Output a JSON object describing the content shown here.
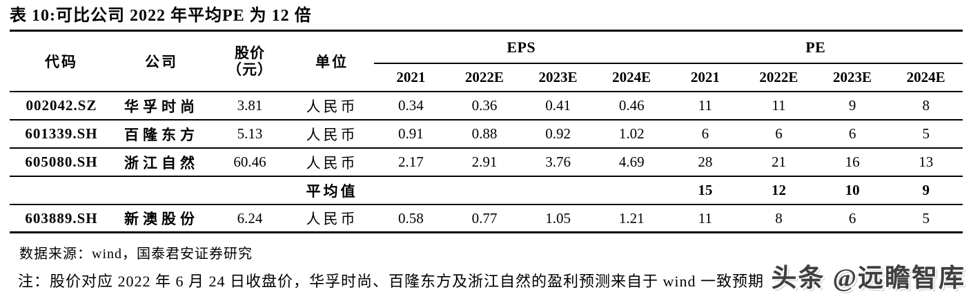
{
  "title": "表 10:可比公司 2022 年平均PE 为 12 倍",
  "colors": {
    "text": "#000000",
    "watermark": "#3f3f3f"
  },
  "table": {
    "headers": {
      "code": "代码",
      "company": "公司",
      "price_line1": "股价",
      "price_line2": "（元）",
      "unit": "单位",
      "eps_group": "EPS",
      "pe_group": "PE",
      "eps_years": [
        "2021",
        "2022E",
        "2023E",
        "2024E"
      ],
      "pe_years": [
        "2021",
        "2022E",
        "2023E",
        "2024E"
      ]
    },
    "rows": [
      {
        "code": "002042.SZ",
        "company": "华孚时尚",
        "price": "3.81",
        "unit": "人民币",
        "eps": [
          "0.34",
          "0.36",
          "0.41",
          "0.46"
        ],
        "pe": [
          "11",
          "11",
          "9",
          "8"
        ]
      },
      {
        "code": "601339.SH",
        "company": "百隆东方",
        "price": "5.13",
        "unit": "人民币",
        "eps": [
          "0.91",
          "0.88",
          "0.92",
          "1.02"
        ],
        "pe": [
          "6",
          "6",
          "6",
          "5"
        ]
      },
      {
        "code": "605080.SH",
        "company": "浙江自然",
        "price": "60.46",
        "unit": "人民币",
        "eps": [
          "2.17",
          "2.91",
          "3.76",
          "4.69"
        ],
        "pe": [
          "28",
          "21",
          "16",
          "13"
        ]
      },
      {
        "code": "",
        "company": "",
        "price": "",
        "unit": "平均值",
        "eps": [
          "",
          "",
          "",
          ""
        ],
        "pe": [
          "15",
          "12",
          "10",
          "9"
        ]
      },
      {
        "code": "603889.SH",
        "company": "新澳股份",
        "price": "6.24",
        "unit": "人民币",
        "eps": [
          "0.58",
          "0.77",
          "1.05",
          "1.21"
        ],
        "pe": [
          "11",
          "8",
          "6",
          "5"
        ]
      }
    ]
  },
  "source": "数据来源：wind，国泰君安证券研究",
  "note": "注：股价对应 2022 年 6 月 24 日收盘价，华孚时尚、百隆东方及浙江自然的盈利预测来自于 wind 一致预期",
  "watermark": "头条 @远瞻智库"
}
